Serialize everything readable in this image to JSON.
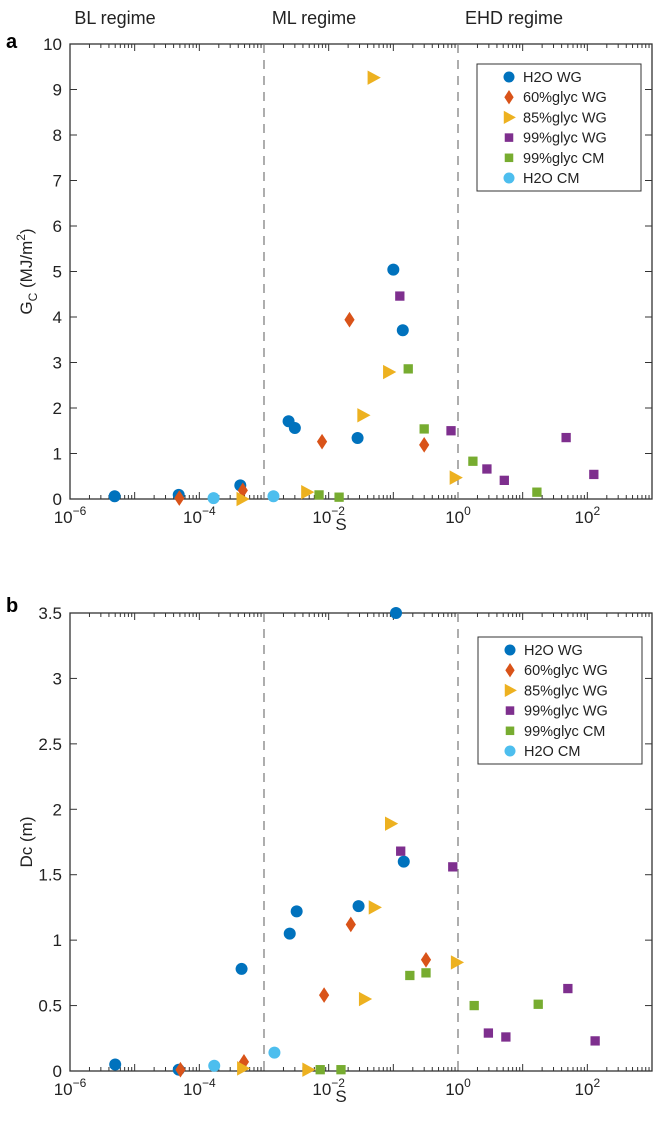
{
  "chart_data": [
    {
      "type": "scatter",
      "panel_label": "a",
      "xlabel": "S",
      "ylabel": "G",
      "ylabel_sub": "C",
      "ylabel_units": " (MJ/m",
      "ylabel_units_sup": "2",
      "ylabel_close": ")",
      "xscale": "log",
      "xlim": [
        1e-06,
        1000
      ],
      "ylim": [
        0,
        10
      ],
      "yticks": [
        "0",
        "1",
        "2",
        "3",
        "4",
        "5",
        "6",
        "7",
        "8",
        "9",
        "10"
      ],
      "legend_placement": "top-right",
      "series": [
        {
          "name": "H2O WG",
          "marker": "circle",
          "color": "#0072BD",
          "x": [
            4.9e-06,
            4.8e-05,
            0.00043,
            0.0024,
            0.003,
            0.028,
            0.1,
            0.14
          ],
          "y": [
            0.06,
            0.09,
            0.3,
            1.71,
            1.56,
            1.34,
            5.04,
            3.71
          ]
        },
        {
          "name": "60%glyc WG",
          "marker": "diamond",
          "color": "#D95319",
          "x": [
            4.9e-05,
            0.00047,
            0.0079,
            0.021,
            0.3
          ],
          "y": [
            0.02,
            0.19,
            1.26,
            3.94,
            1.19
          ]
        },
        {
          "name": "85%glyc WG",
          "marker": "triangle-right",
          "color": "#EDB120",
          "x": [
            0.00046,
            0.0046,
            0.034,
            0.049,
            0.085,
            0.91
          ],
          "y": [
            0.0,
            0.15,
            1.84,
            9.26,
            2.79,
            0.47
          ]
        },
        {
          "name": "99%glyc WG",
          "marker": "square",
          "color": "#7E2F8E",
          "x": [
            0.126,
            0.78,
            2.8,
            5.2,
            47,
            126
          ],
          "y": [
            4.46,
            1.5,
            0.66,
            0.41,
            1.35,
            0.54
          ]
        },
        {
          "name": "99%glyc CM",
          "marker": "square",
          "color": "#77AC30",
          "x": [
            0.0071,
            0.0145,
            0.17,
            0.3,
            1.7,
            16.6
          ],
          "y": [
            0.09,
            0.04,
            2.86,
            1.54,
            0.83,
            0.15
          ]
        },
        {
          "name": "H2O CM",
          "marker": "circle",
          "color": "#4DBEEE",
          "x": [
            0.000166,
            0.0014
          ],
          "y": [
            0.02,
            0.06
          ]
        }
      ]
    },
    {
      "type": "scatter",
      "panel_label": "b",
      "xlabel": "S",
      "ylabel": "Dc (m)",
      "xscale": "log",
      "xlim": [
        1e-06,
        1000
      ],
      "ylim": [
        0,
        3.5
      ],
      "yticks": [
        "0",
        "0.5",
        "1",
        "1.5",
        "2",
        "2.5",
        "3",
        "3.5"
      ],
      "legend_placement": "top-right",
      "series": [
        {
          "name": "H2O WG",
          "marker": "circle",
          "color": "#0072BD",
          "x": [
            5e-06,
            4.8e-05,
            0.00045,
            0.0025,
            0.0032,
            0.029,
            0.11,
            0.145
          ],
          "y": [
            0.05,
            0.01,
            0.78,
            1.05,
            1.22,
            1.26,
            3.5,
            1.6
          ]
        },
        {
          "name": "60%glyc WG",
          "marker": "diamond",
          "color": "#D95319",
          "x": [
            5.1e-05,
            0.00049,
            0.0085,
            0.022,
            0.32
          ],
          "y": [
            0.01,
            0.07,
            0.58,
            1.12,
            0.85
          ]
        },
        {
          "name": "85%glyc WG",
          "marker": "triangle-right",
          "color": "#EDB120",
          "x": [
            0.00047,
            0.0048,
            0.036,
            0.051,
            0.091,
            0.95
          ],
          "y": [
            0.02,
            0.01,
            0.55,
            1.25,
            1.89,
            0.83
          ]
        },
        {
          "name": "99%glyc WG",
          "marker": "square",
          "color": "#7E2F8E",
          "x": [
            0.13,
            0.83,
            2.95,
            5.5,
            50,
            132
          ],
          "y": [
            1.68,
            1.56,
            0.29,
            0.26,
            0.63,
            0.23
          ]
        },
        {
          "name": "99%glyc CM",
          "marker": "square",
          "color": "#77AC30",
          "x": [
            0.0074,
            0.0155,
            0.18,
            0.32,
            1.78,
            17.4
          ],
          "y": [
            0.01,
            0.01,
            0.73,
            0.75,
            0.5,
            0.51
          ]
        },
        {
          "name": "H2O CM",
          "marker": "circle",
          "color": "#4DBEEE",
          "x": [
            0.00017,
            0.00145
          ],
          "y": [
            0.04,
            0.14
          ]
        }
      ]
    }
  ],
  "xticklabels": [
    {
      "base": "10",
      "exp": "−6"
    },
    {
      "base": "10",
      "exp": "−4"
    },
    {
      "base": "10",
      "exp": "−2"
    },
    {
      "base": "10",
      "exp": "0"
    },
    {
      "base": "10",
      "exp": "2"
    }
  ],
  "regimes": [
    "BL regime",
    "ML regime",
    "EHD regime"
  ],
  "regime_boundaries": [
    0.001,
    1
  ]
}
